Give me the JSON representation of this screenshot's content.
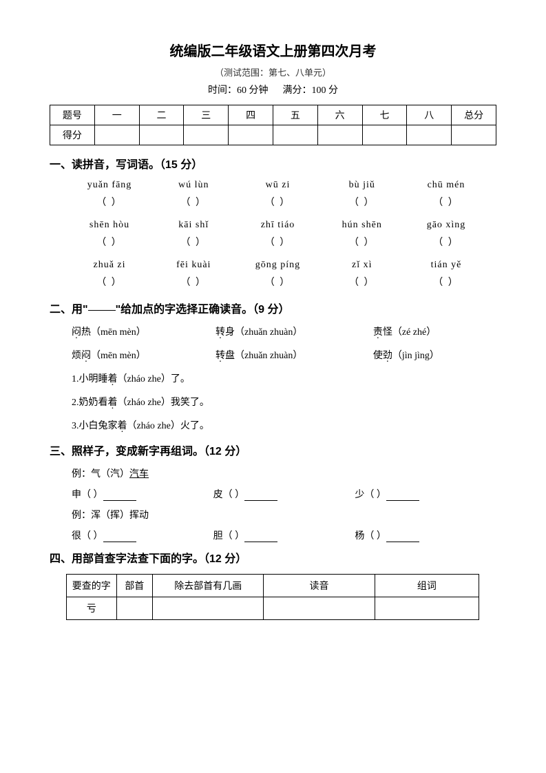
{
  "header": {
    "title": "统编版二年级语文上册第四次月考",
    "scope": "（测试范围：第七、八单元）",
    "time": "时间：60 分钟",
    "full": "满分：100 分"
  },
  "scoreTable": {
    "row1": [
      "题号",
      "一",
      "二",
      "三",
      "四",
      "五",
      "六",
      "七",
      "八",
      "总分"
    ],
    "row2": [
      "得分",
      "",
      "",
      "",
      "",
      "",
      "",
      "",
      "",
      ""
    ]
  },
  "s1": {
    "head": "一、读拼音，写词语。（15 分）",
    "rows": [
      [
        "yuǎn fāng",
        "wú lùn",
        "wū zi",
        "bù jiǔ",
        "chū mén"
      ],
      [
        "shēn hòu",
        "kāi shǐ",
        "zhī tiáo",
        "hún shēn",
        "gāo xìng"
      ],
      [
        "zhuǎ zi",
        "fēi kuài",
        "gōng píng",
        "zǐ xì",
        "tián yě"
      ]
    ],
    "blank": "（          ）"
  },
  "s2": {
    "head_a": "二、用\"",
    "head_b": "\"给加点的字选择正确读音。（9 分）",
    "grid": [
      [
        {
          "pre": "闷",
          "dot": "热",
          "opts": "（mēn  mèn）"
        },
        {
          "pre": "转",
          "dot": "身",
          "opts": "（zhuǎn  zhuàn）"
        },
        {
          "pre": "责",
          "dot": "怪",
          "opts": "（zé  zhé）"
        }
      ],
      [
        {
          "pre": "烦",
          "dot": "闷",
          "opts": "（mēn  mèn）"
        },
        {
          "pre": "转",
          "dot": "盘",
          "opts": "（zhuǎn  zhuàn）"
        },
        {
          "pre": "使",
          "dot": "劲",
          "opts": "（jìn  jìng）"
        }
      ]
    ],
    "lines": [
      {
        "n": "1.",
        "a": "小明睡",
        "dot": "着",
        "b": "（zháo  zhe）了。"
      },
      {
        "n": "2.",
        "a": "奶奶看",
        "dot": "着",
        "b": "（zháo  zhe）我笑了。"
      },
      {
        "n": "3.",
        "a": "小白兔家",
        "dot": "着",
        "b": "（zháo  zhe）火了。"
      }
    ]
  },
  "s3": {
    "head": "三、照样子，变成新字再组词。（12 分）",
    "ex1": "例：气（汽）",
    "ex1w": "汽车",
    "row1": [
      {
        "ch": "申",
        "p": "（      ）"
      },
      {
        "ch": "皮",
        "p": "（      ）"
      },
      {
        "ch": "少",
        "p": "（      ）"
      }
    ],
    "ex2": "例：浑（挥）挥动",
    "row2": [
      {
        "ch": "很",
        "p": "（      ）"
      },
      {
        "ch": "胆",
        "p": "（      ）"
      },
      {
        "ch": "杨",
        "p": "（      ）"
      }
    ]
  },
  "s4": {
    "head": "四、用部首查字法查下面的字。（12 分）",
    "cols": [
      "要查的字",
      "部首",
      "除去部首有几画",
      "读音",
      "组词"
    ],
    "char": "亏"
  }
}
